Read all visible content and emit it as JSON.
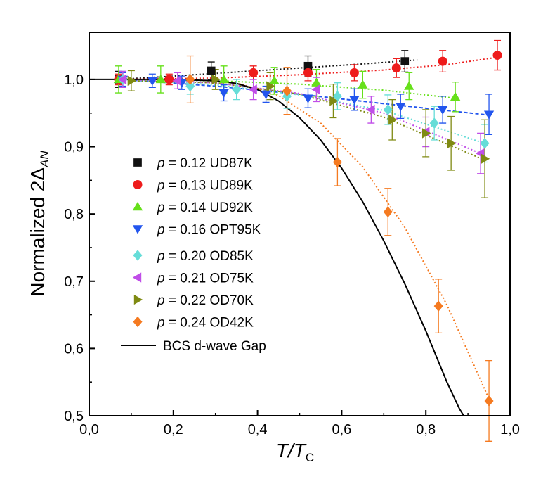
{
  "chart_data": {
    "type": "scatter",
    "xlabel": "T/T_C",
    "xlabel_main": "T/T",
    "xlabel_sub": "C",
    "ylabel": "Normalized 2Δ_AN",
    "ylabel_main": "Normalized 2Δ",
    "ylabel_sub": "AN",
    "xlim": [
      0.0,
      1.0
    ],
    "ylim": [
      0.5,
      1.07
    ],
    "xticks": [
      0.0,
      0.2,
      0.4,
      0.6,
      0.8,
      1.0
    ],
    "xtick_labels": [
      "0,0",
      "0,2",
      "0,4",
      "0,6",
      "0,8",
      "1,0"
    ],
    "yticks": [
      0.5,
      0.6,
      0.7,
      0.8,
      0.9,
      1.0
    ],
    "ytick_labels": [
      "0,5",
      "0,6",
      "0,7",
      "0,8",
      "0,9",
      "1,0"
    ],
    "legend_position": "center-left",
    "series": [
      {
        "p_prefix": "p",
        "name": " = 0.12 UD87K",
        "marker": "square",
        "color": "#111111",
        "x": [
          0.07,
          0.29,
          0.52,
          0.75
        ],
        "y": [
          1.0,
          1.013,
          1.02,
          1.027
        ],
        "err": [
          0.012,
          0.013,
          0.015,
          0.016
        ]
      },
      {
        "p_prefix": "p",
        "name": " = 0.13 UD89K",
        "marker": "circle",
        "color": "#ee1c1c",
        "x": [
          0.07,
          0.19,
          0.39,
          0.52,
          0.63,
          0.73,
          0.84,
          0.97
        ],
        "y": [
          1.0,
          1.0,
          1.01,
          1.01,
          1.01,
          1.017,
          1.027,
          1.036
        ],
        "err": [
          0.008,
          0.008,
          0.01,
          0.012,
          0.012,
          0.014,
          0.016,
          0.022
        ]
      },
      {
        "p_prefix": "p",
        "name": " = 0.14 UD92K",
        "marker": "triangle-up",
        "color": "#66e01a",
        "x": [
          0.07,
          0.17,
          0.32,
          0.44,
          0.54,
          0.65,
          0.76,
          0.87
        ],
        "y": [
          1.0,
          1.0,
          1.0,
          0.998,
          0.995,
          0.992,
          0.99,
          0.974
        ],
        "err": [
          0.02,
          0.02,
          0.02,
          0.02,
          0.02,
          0.02,
          0.02,
          0.022
        ]
      },
      {
        "p_prefix": "p",
        "name": " = 0.16 OPT95K",
        "marker": "triangle-down",
        "color": "#2255ee",
        "x": [
          0.08,
          0.15,
          0.22,
          0.32,
          0.42,
          0.52,
          0.63,
          0.74,
          0.84,
          0.95
        ],
        "y": [
          1.0,
          0.998,
          0.995,
          0.98,
          0.978,
          0.972,
          0.97,
          0.96,
          0.955,
          0.948
        ],
        "err": [
          0.01,
          0.01,
          0.01,
          0.012,
          0.012,
          0.014,
          0.016,
          0.018,
          0.02,
          0.03
        ]
      },
      {
        "p_prefix": "p",
        "name": " = 0.20 OD85K",
        "marker": "diamond",
        "color": "#66ddd8",
        "x": [
          0.08,
          0.24,
          0.35,
          0.47,
          0.59,
          0.71,
          0.82,
          0.94
        ],
        "y": [
          1.0,
          0.99,
          0.985,
          0.975,
          0.975,
          0.955,
          0.935,
          0.905
        ],
        "err": [
          0.012,
          0.012,
          0.015,
          0.018,
          0.02,
          0.022,
          0.025,
          0.028
        ]
      },
      {
        "p_prefix": "p",
        "name": " = 0.21 OD75K",
        "marker": "triangle-left",
        "color": "#c04ee8",
        "x": [
          0.08,
          0.21,
          0.39,
          0.54,
          0.67,
          0.8,
          0.93
        ],
        "y": [
          1.0,
          0.998,
          0.985,
          0.985,
          0.955,
          0.922,
          0.89
        ],
        "err": [
          0.012,
          0.012,
          0.015,
          0.018,
          0.02,
          0.022,
          0.03
        ]
      },
      {
        "p_prefix": "p",
        "name": " = 0.22 OD70K",
        "marker": "triangle-right",
        "color": "#7f8a12",
        "x": [
          0.1,
          0.3,
          0.43,
          0.58,
          0.72,
          0.8,
          0.86,
          0.94
        ],
        "y": [
          0.998,
          1.0,
          0.99,
          0.968,
          0.94,
          0.92,
          0.905,
          0.882
        ],
        "err": [
          0.015,
          0.015,
          0.02,
          0.025,
          0.03,
          0.035,
          0.04,
          0.058
        ]
      },
      {
        "p_prefix": "p",
        "name": " = 0.24 OD42K",
        "marker": "diamond",
        "color": "#f57a20",
        "x": [
          0.24,
          0.47,
          0.59,
          0.71,
          0.83,
          0.95
        ],
        "y": [
          1.0,
          0.983,
          0.877,
          0.803,
          0.663,
          0.522
        ],
        "err": [
          0.035,
          0.035,
          0.035,
          0.035,
          0.04,
          0.06
        ]
      }
    ],
    "fits": [
      {
        "color": "#111111",
        "style": "dotted",
        "x": [
          0.07,
          0.2,
          0.35,
          0.5,
          0.65,
          0.78
        ],
        "y": [
          1.0,
          1.005,
          1.011,
          1.017,
          1.023,
          1.029
        ]
      },
      {
        "color": "#ee1c1c",
        "style": "dotted",
        "x": [
          0.07,
          0.3,
          0.5,
          0.7,
          0.85,
          0.97
        ],
        "y": [
          1.0,
          1.002,
          1.007,
          1.014,
          1.022,
          1.033
        ]
      },
      {
        "color": "#66e01a",
        "style": "dotted",
        "x": [
          0.07,
          0.3,
          0.5,
          0.7,
          0.87
        ],
        "y": [
          1.0,
          0.998,
          0.993,
          0.984,
          0.972
        ]
      },
      {
        "color": "#2255ee",
        "style": "dashed",
        "x": [
          0.08,
          0.3,
          0.5,
          0.7,
          0.95
        ],
        "y": [
          1.0,
          0.99,
          0.978,
          0.964,
          0.947
        ]
      },
      {
        "color": "#66ddd8",
        "style": "dotted",
        "x": [
          0.08,
          0.3,
          0.5,
          0.7,
          0.94
        ],
        "y": [
          1.0,
          0.992,
          0.977,
          0.954,
          0.905
        ]
      },
      {
        "color": "#c04ee8",
        "style": "dotted",
        "x": [
          0.08,
          0.3,
          0.5,
          0.7,
          0.93
        ],
        "y": [
          1.0,
          0.995,
          0.979,
          0.95,
          0.89
        ]
      },
      {
        "color": "#7f8a12",
        "style": "dotted",
        "x": [
          0.1,
          0.3,
          0.5,
          0.7,
          0.94
        ],
        "y": [
          0.998,
          0.995,
          0.978,
          0.944,
          0.88
        ]
      },
      {
        "color": "#f57a20",
        "style": "dotted",
        "x": [
          0.24,
          0.35,
          0.45,
          0.55,
          0.65,
          0.75,
          0.85,
          0.95
        ],
        "y": [
          1.0,
          0.995,
          0.976,
          0.935,
          0.87,
          0.78,
          0.665,
          0.525
        ]
      }
    ],
    "bcs_curve": {
      "label": "BCS d-wave Gap",
      "color": "#000000",
      "x": [
        0.0,
        0.1,
        0.2,
        0.3,
        0.35,
        0.4,
        0.45,
        0.5,
        0.55,
        0.6,
        0.65,
        0.7,
        0.75,
        0.8,
        0.85,
        0.88,
        0.9
      ],
      "y": [
        1.0,
        1.0,
        1.0,
        0.998,
        0.994,
        0.985,
        0.968,
        0.943,
        0.91,
        0.868,
        0.818,
        0.76,
        0.696,
        0.626,
        0.55,
        0.51,
        0.49
      ]
    }
  }
}
